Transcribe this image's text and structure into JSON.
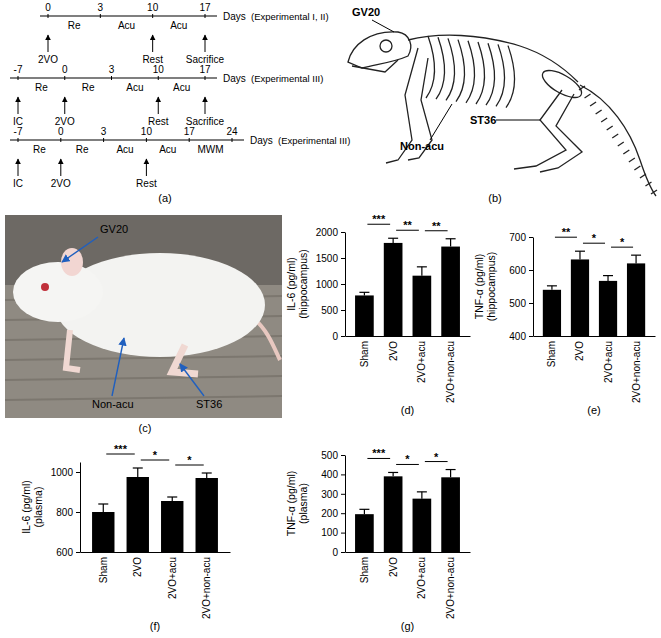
{
  "panel_a": "(a)",
  "timelines": [
    {
      "days": [
        0,
        3,
        10,
        17
      ],
      "segments": [
        {
          "from": 0,
          "to": 3,
          "text": "Re"
        },
        {
          "from": 3,
          "to": 10,
          "text": "Acu"
        },
        {
          "from": 10,
          "to": 17,
          "text": "Acu"
        }
      ],
      "events": [
        {
          "day": 0,
          "text": "2VO"
        },
        {
          "day": 10,
          "text": "Rest"
        },
        {
          "day": 17,
          "text": "Sacrifice"
        }
      ],
      "unit": "Days",
      "label": "(Experimental I, II)"
    },
    {
      "days": [
        -7,
        0,
        3,
        10,
        17
      ],
      "segments": [
        {
          "from": -7,
          "to": 0,
          "text": "Re"
        },
        {
          "from": 0,
          "to": 3,
          "text": "Re"
        },
        {
          "from": 3,
          "to": 10,
          "text": "Acu"
        },
        {
          "from": 10,
          "to": 17,
          "text": "Acu"
        }
      ],
      "events": [
        {
          "day": -7,
          "text": "IC"
        },
        {
          "day": 0,
          "text": "2VO"
        },
        {
          "day": 10,
          "text": "Rest"
        },
        {
          "day": 17,
          "text": "Sacrifice"
        }
      ],
      "unit": "Days",
      "label": "(Experimental III)"
    },
    {
      "days": [
        -7,
        0,
        3,
        10,
        17,
        24
      ],
      "segments": [
        {
          "from": -7,
          "to": 0,
          "text": "Re"
        },
        {
          "from": 0,
          "to": 3,
          "text": "Re"
        },
        {
          "from": 3,
          "to": 10,
          "text": "Acu"
        },
        {
          "from": 10,
          "to": 17,
          "text": "Acu"
        },
        {
          "from": 17,
          "to": 24,
          "text": "MWM"
        }
      ],
      "events": [
        {
          "day": -7,
          "text": "IC"
        },
        {
          "day": 0,
          "text": "2VO"
        },
        {
          "day": 10,
          "text": "Rest"
        }
      ],
      "unit": "Days",
      "label": "(Experimental III)"
    }
  ],
  "skeleton": {
    "acupoints": [
      "GV20",
      "Non-acu",
      "ST36"
    ],
    "panel": "(b)"
  },
  "photo": {
    "acupoints": [
      "GV20",
      "Non-acu",
      "ST36"
    ],
    "panel": "(c)"
  },
  "chart_data": [
    {
      "type": "bar",
      "ylabel": "IL-6 (pg/ml)\n(hippocampus)",
      "xlabel": "(d)",
      "categories": [
        "Sham",
        "2VO",
        "2VO+acu",
        "2VO+non-acu"
      ],
      "values": [
        780,
        1790,
        1160,
        1720
      ],
      "errors": [
        60,
        90,
        170,
        150
      ],
      "color": "#000000",
      "ylim": [
        0,
        2000
      ],
      "yticks": [
        0,
        500,
        1000,
        1500,
        2000
      ],
      "annotations": [
        {
          "between": [
            "Sham",
            "2VO"
          ],
          "text": "***"
        },
        {
          "between": [
            "2VO",
            "2VO+acu"
          ],
          "text": "**"
        },
        {
          "between": [
            "2VO+acu",
            "2VO+non-acu"
          ],
          "text": "**"
        }
      ]
    },
    {
      "type": "bar",
      "ylabel": "TNF-α (pg/ml)\n(hippocampus)",
      "xlabel": "(e)",
      "categories": [
        "Sham",
        "2VO",
        "2VO+acu",
        "2VO+non-acu"
      ],
      "values": [
        540,
        632,
        567,
        620
      ],
      "errors": [
        12,
        25,
        16,
        25
      ],
      "color": "#000000",
      "ylim": [
        400,
        700
      ],
      "yticks": [
        400,
        500,
        600,
        700
      ],
      "annotations": [
        {
          "between": [
            "Sham",
            "2VO"
          ],
          "text": "**"
        },
        {
          "between": [
            "2VO",
            "2VO+acu"
          ],
          "text": "*"
        },
        {
          "between": [
            "2VO+acu",
            "2VO+non-acu"
          ],
          "text": "*"
        }
      ]
    },
    {
      "type": "bar",
      "ylabel": "IL-6 (pg/ml)\n(plasma)",
      "xlabel": "(f)",
      "categories": [
        "Sham",
        "2VO",
        "2VO+acu",
        "2VO+non-acu"
      ],
      "values": [
        800,
        975,
        855,
        970
      ],
      "errors": [
        40,
        45,
        20,
        25
      ],
      "color": "#000000",
      "ylim": [
        600,
        1050
      ],
      "yticks": [
        600,
        800,
        1000
      ],
      "annotations": [
        {
          "between": [
            "Sham",
            "2VO"
          ],
          "text": "***"
        },
        {
          "between": [
            "2VO",
            "2VO+acu"
          ],
          "text": "*"
        },
        {
          "between": [
            "2VO+acu",
            "2VO+non-acu"
          ],
          "text": "*"
        }
      ]
    },
    {
      "type": "bar",
      "ylabel": "TNF-α (pg/ml)\n(plasma)",
      "xlabel": "(g)",
      "categories": [
        "Sham",
        "2VO",
        "2VO+acu",
        "2VO+non-acu"
      ],
      "values": [
        195,
        390,
        275,
        385
      ],
      "errors": [
        25,
        20,
        35,
        40
      ],
      "color": "#000000",
      "ylim": [
        0,
        500
      ],
      "yticks": [
        0,
        100,
        200,
        300,
        400,
        500
      ],
      "annotations": [
        {
          "between": [
            "Sham",
            "2VO"
          ],
          "text": "***"
        },
        {
          "between": [
            "2VO",
            "2VO+acu"
          ],
          "text": "*"
        },
        {
          "between": [
            "2VO+acu",
            "2VO+non-acu"
          ],
          "text": "*"
        }
      ]
    }
  ]
}
